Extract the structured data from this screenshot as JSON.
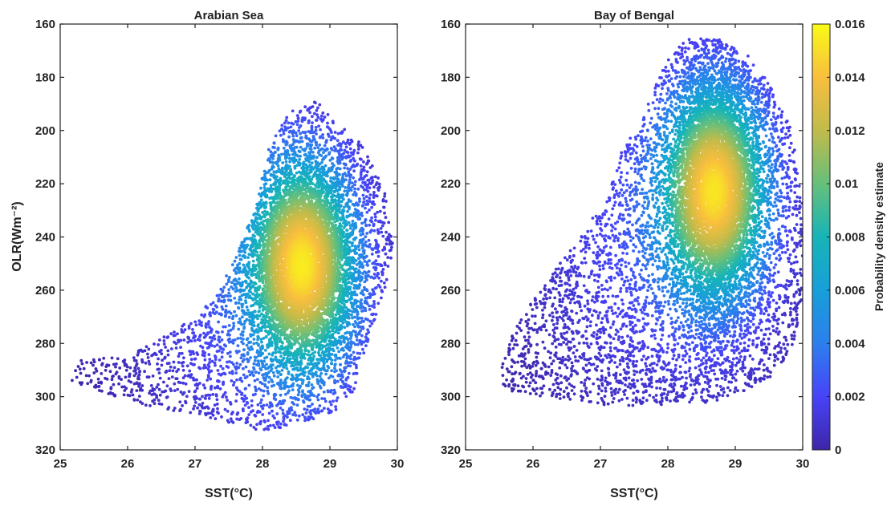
{
  "chart_data": [
    {
      "type": "scatter",
      "title": "Arabian Sea",
      "xlabel": "SST(°C)",
      "ylabel": "OLR(Wm⁻²)",
      "xlim": [
        25,
        30
      ],
      "ylim": [
        160,
        320
      ],
      "y_reversed": true,
      "xticks": [
        "25",
        "26",
        "27",
        "28",
        "29",
        "30"
      ],
      "yticks": [
        "160",
        "180",
        "200",
        "220",
        "240",
        "260",
        "280",
        "300",
        "320"
      ],
      "color_encoding": "Probability density estimate",
      "density_peak": {
        "x": 28.6,
        "y": 250,
        "value": 0.015
      },
      "boundary": [
        [
          25.1,
          294
        ],
        [
          25.3,
          286
        ],
        [
          26.0,
          285
        ],
        [
          26.5,
          278
        ],
        [
          27.0,
          270
        ],
        [
          27.3,
          262
        ],
        [
          27.6,
          248
        ],
        [
          27.9,
          228
        ],
        [
          28.1,
          205
        ],
        [
          28.4,
          193
        ],
        [
          28.8,
          189
        ],
        [
          29.1,
          196
        ],
        [
          29.5,
          206
        ],
        [
          29.8,
          222
        ],
        [
          29.95,
          240
        ],
        [
          29.85,
          258
        ],
        [
          29.55,
          280
        ],
        [
          29.35,
          298
        ],
        [
          29.05,
          306
        ],
        [
          28.6,
          310
        ],
        [
          28.0,
          313
        ],
        [
          27.4,
          309
        ],
        [
          26.8,
          306
        ],
        [
          26.2,
          303
        ],
        [
          25.6,
          298
        ]
      ]
    },
    {
      "type": "scatter",
      "title": "Bay of Bengal",
      "xlabel": "SST(°C)",
      "ylabel": "",
      "xlim": [
        25,
        30
      ],
      "ylim": [
        160,
        320
      ],
      "y_reversed": true,
      "xticks": [
        "25",
        "26",
        "27",
        "28",
        "29",
        "30"
      ],
      "yticks": [
        "160",
        "180",
        "200",
        "220",
        "240",
        "260",
        "280",
        "300",
        "320"
      ],
      "color_encoding": "Probability density estimate",
      "density_peak": {
        "x": 28.7,
        "y": 222,
        "value": 0.016
      },
      "boundary": [
        [
          25.5,
          294
        ],
        [
          25.6,
          280
        ],
        [
          26.0,
          263
        ],
        [
          26.4,
          250
        ],
        [
          26.8,
          236
        ],
        [
          27.1,
          225
        ],
        [
          27.35,
          205
        ],
        [
          27.6,
          198
        ],
        [
          27.8,
          183
        ],
        [
          28.0,
          173
        ],
        [
          28.3,
          165
        ],
        [
          28.8,
          166
        ],
        [
          29.2,
          172
        ],
        [
          29.5,
          182
        ],
        [
          29.85,
          200
        ],
        [
          30.0,
          225
        ],
        [
          30.0,
          262
        ],
        [
          29.85,
          282
        ],
        [
          29.55,
          292
        ],
        [
          29.0,
          300
        ],
        [
          28.4,
          303
        ],
        [
          27.6,
          304
        ],
        [
          26.9,
          303
        ],
        [
          26.2,
          300
        ],
        [
          25.7,
          299
        ]
      ]
    }
  ],
  "colorbar": {
    "label": "Probability density estimate",
    "ticks": [
      "0",
      "0.002",
      "0.004",
      "0.006",
      "0.008",
      "0.01",
      "0.012",
      "0.014",
      "0.016"
    ],
    "range": [
      0,
      0.016
    ],
    "colormap": "parula",
    "stops": [
      "#3e26a8",
      "#4743f8",
      "#2c7fed",
      "#179fd8",
      "#17b4b7",
      "#66bf7a",
      "#c1bb4a",
      "#f8be3e",
      "#f9fb15"
    ]
  }
}
